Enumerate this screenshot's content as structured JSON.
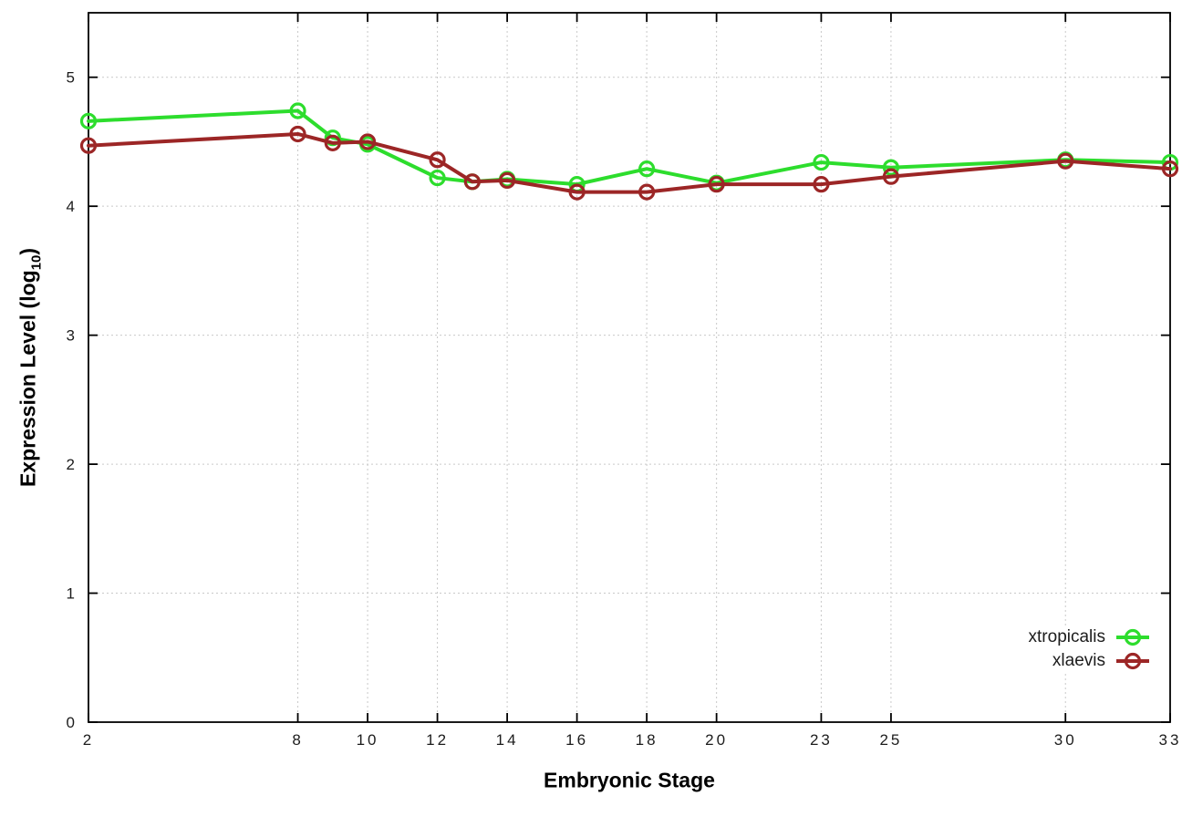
{
  "chart_data": {
    "type": "line",
    "title": "",
    "xlabel": "Embryonic Stage",
    "ylabel_main": "Expression Level (log",
    "ylabel_sub": "10",
    "ylabel_close": ")",
    "x": [
      2,
      8,
      9,
      10,
      12,
      13,
      14,
      16,
      18,
      20,
      23,
      25,
      30,
      33
    ],
    "series": [
      {
        "name": "xtropicalis",
        "color": "#2ddd2d",
        "values": [
          4.66,
          4.74,
          4.53,
          4.48,
          4.22,
          4.19,
          4.21,
          4.17,
          4.29,
          4.18,
          4.34,
          4.3,
          4.36,
          4.34
        ]
      },
      {
        "name": "xlaevis",
        "color": "#9c2626",
        "values": [
          4.47,
          4.56,
          4.49,
          4.5,
          4.36,
          4.19,
          4.2,
          4.11,
          4.11,
          4.17,
          4.17,
          4.23,
          4.35,
          4.29
        ]
      }
    ],
    "xticks": [
      2,
      8,
      10,
      12,
      14,
      16,
      18,
      20,
      23,
      25,
      30,
      33
    ],
    "yticks": [
      0,
      1,
      2,
      3,
      4,
      5
    ],
    "xlim": [
      2,
      33
    ],
    "ylim": [
      0,
      5.5
    ],
    "grid": true,
    "legend_position": "bottom-right"
  }
}
